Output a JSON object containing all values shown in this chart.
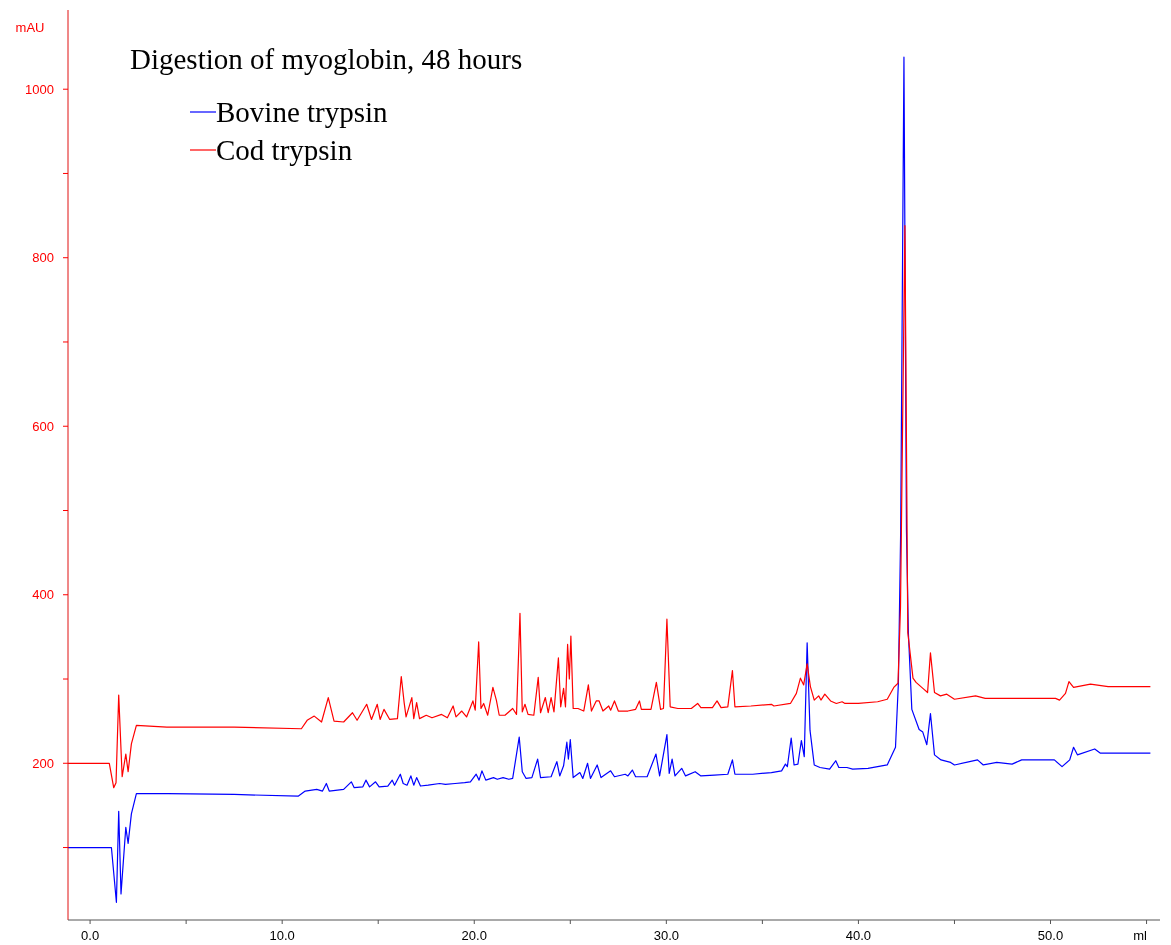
{
  "chart_data": {
    "type": "line",
    "title": "Digestion of myoglobin, 48 hours",
    "xlabel": "ml",
    "ylabel": "mAU",
    "xlim": [
      -1.15,
      55.7
    ],
    "ylim": [
      14,
      1094
    ],
    "xticks": [
      {
        "value": 0,
        "label": "0.0"
      },
      {
        "value": 5,
        "label": null
      },
      {
        "value": 10,
        "label": "10.0"
      },
      {
        "value": 15,
        "label": null
      },
      {
        "value": 20,
        "label": "20.0"
      },
      {
        "value": 25,
        "label": null
      },
      {
        "value": 30,
        "label": "30.0"
      },
      {
        "value": 35,
        "label": null
      },
      {
        "value": 40,
        "label": "40.0"
      },
      {
        "value": 45,
        "label": null
      },
      {
        "value": 50,
        "label": "50.0"
      },
      {
        "value": 55,
        "label": null
      }
    ],
    "yticks": [
      {
        "value": 100,
        "label": null
      },
      200,
      {
        "value": 300,
        "label": null
      },
      400,
      {
        "value": 500,
        "label": null
      },
      600,
      {
        "value": 700,
        "label": null
      },
      800,
      {
        "value": 900,
        "label": null
      },
      1000
    ],
    "grid": false,
    "legend": "top left",
    "marker": "none",
    "line_style": "solid",
    "series": [
      {
        "name": "Bovine trypsin",
        "color": "#0000ff",
        "x": [
          -1.15,
          1.11,
          1.37,
          1.49,
          1.61,
          1.86,
          1.98,
          2.15,
          2.41,
          4.06,
          7.5,
          10.83,
          11.2,
          11.8,
          12.1,
          12.3,
          12.45,
          13.2,
          13.6,
          13.75,
          14.2,
          14.36,
          14.55,
          14.86,
          15.05,
          15.5,
          15.73,
          15.85,
          16.15,
          16.3,
          16.5,
          16.7,
          16.85,
          17.0,
          17.2,
          17.6,
          18.2,
          18.5,
          19.0,
          19.5,
          19.8,
          20.1,
          20.25,
          20.4,
          20.6,
          21.0,
          21.2,
          21.5,
          21.8,
          22.0,
          22.34,
          22.5,
          22.7,
          23.0,
          23.3,
          23.45,
          24.0,
          24.3,
          24.45,
          24.65,
          24.82,
          24.9,
          25.0,
          25.15,
          25.5,
          25.65,
          25.9,
          26.05,
          26.4,
          26.6,
          27.1,
          27.3,
          27.86,
          28.0,
          28.23,
          28.4,
          29.0,
          29.46,
          29.65,
          30.03,
          30.15,
          30.3,
          30.45,
          30.8,
          31.0,
          31.5,
          31.8,
          32.5,
          33.2,
          33.44,
          33.57,
          34.5,
          35.47,
          36.0,
          36.2,
          36.3,
          36.5,
          36.65,
          36.85,
          37.03,
          37.18,
          37.33,
          37.48,
          37.7,
          38.0,
          38.5,
          38.82,
          38.98,
          39.4,
          39.7,
          40.5,
          41.5,
          41.93,
          42.08,
          42.2,
          42.37,
          42.5,
          42.6,
          42.78,
          43.16,
          43.35,
          43.56,
          43.75,
          43.96,
          44.3,
          44.8,
          45.0,
          46.2,
          46.5,
          47.2,
          48.0,
          48.5,
          50.2,
          50.6,
          51.0,
          51.2,
          51.4,
          52.3,
          52.6,
          55.2
        ],
        "values": [
          100,
          100,
          35,
          143,
          45,
          124,
          105,
          140,
          164,
          164,
          163,
          161,
          167,
          169,
          167,
          176,
          167,
          169,
          178,
          171,
          172,
          180,
          172,
          178,
          172,
          173,
          180,
          174,
          187,
          176,
          174,
          185,
          174,
          183,
          173,
          174,
          176,
          175,
          176,
          177,
          178,
          187,
          180,
          191,
          180,
          183,
          181,
          183,
          181,
          182,
          231,
          190,
          182,
          183,
          205,
          183,
          184,
          202,
          185,
          197,
          225,
          205,
          228,
          183,
          189,
          182,
          200,
          182,
          198,
          183,
          191,
          184,
          187,
          185,
          192,
          184,
          184,
          211,
          185,
          234,
          188,
          205,
          185,
          194,
          185,
          190,
          185,
          186,
          187,
          204,
          187,
          187,
          189,
          191,
          199,
          196,
          230,
          198,
          199,
          227,
          208,
          343,
          239,
          198,
          195,
          193,
          203,
          195,
          195,
          193,
          194,
          198,
          219,
          295,
          477,
          1038,
          477,
          355,
          264,
          240,
          237,
          222,
          259,
          210,
          204,
          201,
          198,
          204,
          198,
          201,
          199,
          204,
          204,
          196,
          204,
          219,
          210,
          217,
          212,
          212
        ]
      },
      {
        "name": "Cod trypsin",
        "color": "#ff0000",
        "x": [
          -1.15,
          1.0,
          1.23,
          1.35,
          1.49,
          1.67,
          1.86,
          1.98,
          2.15,
          2.41,
          4.0,
          7.5,
          11.0,
          11.3,
          11.67,
          12.05,
          12.4,
          12.7,
          13.2,
          13.66,
          13.9,
          14.4,
          14.65,
          14.95,
          15.1,
          15.3,
          15.6,
          16.0,
          16.2,
          16.35,
          16.45,
          16.75,
          16.85,
          17.0,
          17.15,
          17.5,
          17.8,
          18.3,
          18.6,
          18.9,
          19.05,
          19.35,
          19.6,
          19.93,
          20.05,
          20.23,
          20.35,
          20.49,
          20.7,
          20.97,
          21.15,
          21.3,
          21.6,
          22.0,
          22.2,
          22.38,
          22.5,
          22.64,
          22.8,
          23.1,
          23.33,
          23.45,
          23.7,
          23.85,
          24.0,
          24.15,
          24.38,
          24.5,
          24.65,
          24.75,
          24.86,
          24.95,
          25.03,
          25.15,
          25.4,
          25.7,
          25.94,
          26.1,
          26.35,
          26.5,
          26.7,
          27.0,
          27.1,
          27.3,
          27.5,
          28.0,
          28.4,
          28.6,
          28.7,
          29.2,
          29.48,
          29.7,
          29.85,
          30.03,
          30.2,
          30.6,
          31.3,
          31.63,
          31.8,
          32.4,
          32.64,
          32.85,
          33.2,
          33.44,
          33.57,
          34.4,
          35.47,
          35.6,
          36.46,
          36.77,
          36.98,
          37.15,
          37.33,
          37.5,
          37.7,
          37.93,
          38.05,
          38.25,
          38.55,
          38.85,
          39.15,
          39.3,
          40.0,
          41.0,
          41.5,
          41.84,
          42.06,
          42.19,
          42.42,
          42.57,
          42.84,
          43.0,
          43.4,
          43.6,
          43.75,
          43.96,
          44.27,
          44.6,
          45.0,
          46.1,
          46.6,
          47.5,
          50.26,
          50.47,
          50.78,
          50.96,
          51.2,
          52.08,
          53.0,
          55.2
        ],
        "values": [
          200,
          200,
          171,
          177,
          281,
          184,
          211,
          190,
          223,
          245,
          243,
          243,
          241,
          251,
          256,
          249,
          278,
          250,
          249,
          260,
          251,
          270,
          252,
          270,
          252,
          264,
          252,
          253,
          303,
          272,
          255,
          278,
          253,
          272,
          253,
          257,
          254,
          258,
          254,
          268,
          255,
          262,
          255,
          274,
          263,
          344,
          265,
          271,
          257,
          290,
          275,
          257,
          257,
          265,
          258,
          378,
          261,
          270,
          258,
          257,
          302,
          260,
          278,
          260,
          278,
          261,
          325,
          267,
          289,
          267,
          341,
          300,
          351,
          265,
          265,
          262,
          293,
          262,
          274,
          274,
          262,
          268,
          263,
          274,
          262,
          262,
          264,
          274,
          264,
          264,
          296,
          264,
          265,
          371,
          267,
          265,
          265,
          271,
          266,
          266,
          274,
          266,
          267,
          310,
          267,
          268,
          270,
          268,
          271,
          283,
          301,
          293,
          318,
          291,
          275,
          280,
          275,
          282,
          274,
          271,
          273,
          271,
          271,
          273,
          276,
          290,
          295,
          385,
          838,
          355,
          301,
          296,
          288,
          284,
          331,
          284,
          280,
          282,
          276,
          280,
          277,
          277,
          277,
          275,
          283,
          297,
          290,
          294,
          291,
          291
        ]
      }
    ]
  }
}
